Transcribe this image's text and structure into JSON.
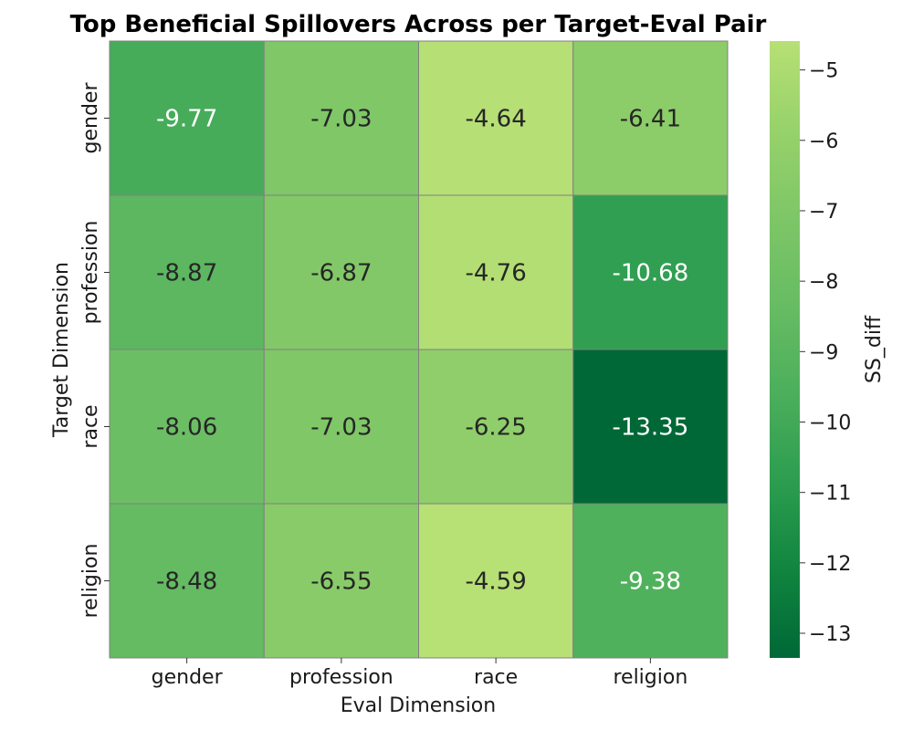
{
  "chart_data": {
    "type": "heatmap",
    "title": "Top Beneficial Spillovers Across per Target-Eval Pair",
    "xlabel": "Eval Dimension",
    "ylabel": "Target Dimension",
    "x_categories": [
      "gender",
      "profession",
      "race",
      "religion"
    ],
    "y_categories": [
      "gender",
      "profession",
      "race",
      "religion"
    ],
    "values": [
      [
        -9.77,
        -7.03,
        -4.64,
        -6.41
      ],
      [
        -8.87,
        -6.87,
        -4.76,
        -10.68
      ],
      [
        -8.06,
        -7.03,
        -6.25,
        -13.35
      ],
      [
        -8.48,
        -6.55,
        -4.59,
        -9.38
      ]
    ],
    "value_labels": [
      [
        "-9.77",
        "-7.03",
        "-4.64",
        "-6.41"
      ],
      [
        "-8.87",
        "-6.87",
        "-4.76",
        "-10.68"
      ],
      [
        "-8.06",
        "-7.03",
        "-6.25",
        "-13.35"
      ],
      [
        "-8.48",
        "-6.55",
        "-4.59",
        "-9.38"
      ]
    ],
    "colorbar": {
      "label": "SS_diff",
      "vmin": -13.35,
      "vmax": -4.59,
      "ticks": [
        -5,
        -6,
        -7,
        -8,
        -9,
        -10,
        -11,
        -12,
        -13
      ],
      "tick_labels": [
        "−5",
        "−6",
        "−7",
        "−8",
        "−9",
        "−10",
        "−11",
        "−12",
        "−13"
      ],
      "colormap": "YlGn_r"
    },
    "grid": true,
    "legend": "colorbar-right"
  }
}
